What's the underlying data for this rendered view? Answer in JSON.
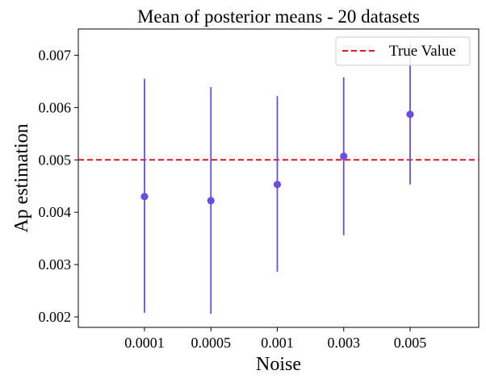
{
  "chart_data": {
    "type": "scatter",
    "title": "Mean of posterior means - 20 datasets",
    "xlabel": "Noise",
    "ylabel": "Ap estimation",
    "categories": [
      "0.0001",
      "0.0005",
      "0.001",
      "0.003",
      "0.005"
    ],
    "series": [
      {
        "values": [
          0.0043,
          0.00422,
          0.00453,
          0.00507,
          0.00587
        ],
        "err_low": [
          0.00208,
          0.00206,
          0.00286,
          0.00356,
          0.00453
        ],
        "err_high": [
          0.00655,
          0.00639,
          0.00622,
          0.00658,
          0.00723
        ],
        "color": "#6a4ee3"
      }
    ],
    "reference_line": {
      "name": "True Value",
      "value": 0.005,
      "color": "#e8141b",
      "style": "dashed"
    },
    "yticks": [
      "0.002",
      "0.003",
      "0.004",
      "0.005",
      "0.006",
      "0.007"
    ],
    "ylim": [
      0.0018,
      0.0075
    ],
    "grid": false,
    "legend_position": "top-right"
  }
}
